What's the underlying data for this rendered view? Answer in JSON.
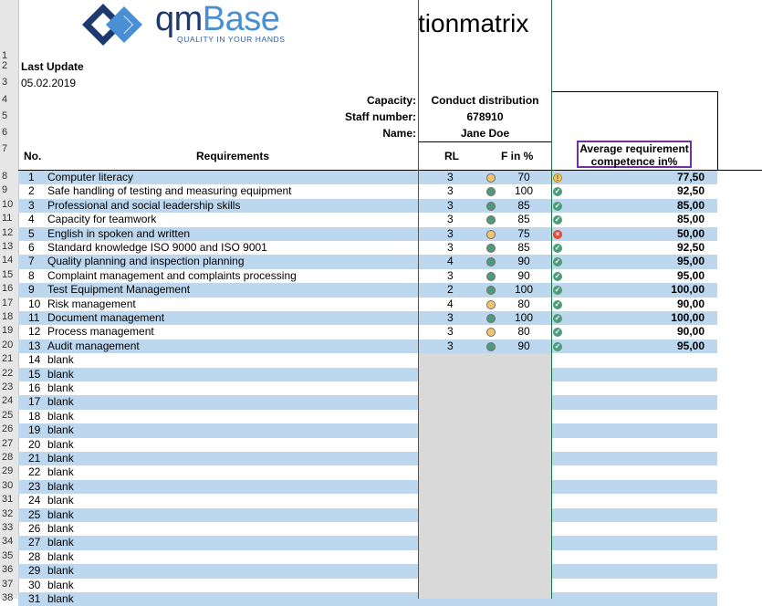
{
  "logo": {
    "word_a": "qm",
    "word_b": "Base",
    "tagline": "QUALITY IN YOUR HANDS"
  },
  "title": "tionmatrix",
  "last_update_label": "Last Update",
  "last_update_value": "05.02.2019",
  "info": {
    "capacity_label": "Capacity:",
    "capacity_value": "Conduct distribution",
    "staff_label": "Staff number:",
    "staff_value": "678910",
    "name_label": "Name:",
    "name_value": "Jane Doe"
  },
  "headers": {
    "no": "No.",
    "requirements": "Requirements",
    "rl": "RL",
    "f": "F in %",
    "avg": "Average requirement competence in%"
  },
  "status_colors": {
    "green": "#4e9a7a",
    "yellow": "#f2c46d",
    "red": "#e04b3c",
    "band": "#bdd7ee"
  },
  "row_numbers": [
    "1",
    "2",
    "3",
    "4",
    "5",
    "6",
    "7",
    "8",
    "9",
    "10",
    "11",
    "12",
    "13",
    "14",
    "15",
    "16",
    "17",
    "18",
    "19",
    "20",
    "21",
    "22",
    "23",
    "24",
    "25",
    "26",
    "27",
    "28",
    "29",
    "30",
    "31",
    "32",
    "33",
    "34",
    "35",
    "36",
    "37",
    "38"
  ],
  "requirements": [
    {
      "no": "1",
      "name": "Computer literacy",
      "rl": "3",
      "f": "70",
      "dot": "yellow",
      "icon": "warn",
      "avg": "77,50"
    },
    {
      "no": "2",
      "name": "Safe handling of testing and measuring equipment",
      "rl": "3",
      "f": "100",
      "dot": "green",
      "icon": "ok",
      "avg": "92,50"
    },
    {
      "no": "3",
      "name": "Professional and social leadership skills",
      "rl": "3",
      "f": "85",
      "dot": "green",
      "icon": "ok",
      "avg": "85,00"
    },
    {
      "no": "4",
      "name": "Capacity for teamwork",
      "rl": "3",
      "f": "85",
      "dot": "green",
      "icon": "ok",
      "avg": "85,00"
    },
    {
      "no": "5",
      "name": "English in spoken and written",
      "rl": "3",
      "f": "75",
      "dot": "yellow",
      "icon": "bad",
      "avg": "50,00"
    },
    {
      "no": "6",
      "name": "Standard knowledge ISO 9000 and ISO 9001",
      "rl": "3",
      "f": "85",
      "dot": "green",
      "icon": "ok",
      "avg": "92,50"
    },
    {
      "no": "7",
      "name": "Quality planning and inspection planning",
      "rl": "4",
      "f": "90",
      "dot": "green",
      "icon": "ok",
      "avg": "95,00"
    },
    {
      "no": "8",
      "name": "Complaint management and complaints processing",
      "rl": "3",
      "f": "90",
      "dot": "green",
      "icon": "ok",
      "avg": "95,00"
    },
    {
      "no": "9",
      "name": "Test Equipment Management",
      "rl": "2",
      "f": "100",
      "dot": "green",
      "icon": "ok",
      "avg": "100,00"
    },
    {
      "no": "10",
      "name": "Risk management",
      "rl": "4",
      "f": "80",
      "dot": "yellow",
      "icon": "ok",
      "avg": "90,00"
    },
    {
      "no": "11",
      "name": "Document management",
      "rl": "3",
      "f": "100",
      "dot": "green",
      "icon": "ok",
      "avg": "100,00"
    },
    {
      "no": "12",
      "name": "Process management",
      "rl": "3",
      "f": "80",
      "dot": "yellow",
      "icon": "ok",
      "avg": "90,00"
    },
    {
      "no": "13",
      "name": "Audit management",
      "rl": "3",
      "f": "90",
      "dot": "green",
      "icon": "ok",
      "avg": "95,00"
    }
  ],
  "blanks": [
    {
      "no": "14",
      "name": "blank"
    },
    {
      "no": "15",
      "name": "blank"
    },
    {
      "no": "16",
      "name": "blank"
    },
    {
      "no": "17",
      "name": "blank"
    },
    {
      "no": "18",
      "name": "blank"
    },
    {
      "no": "19",
      "name": "blank"
    },
    {
      "no": "20",
      "name": "blank"
    },
    {
      "no": "21",
      "name": "blank"
    },
    {
      "no": "22",
      "name": "blank"
    },
    {
      "no": "23",
      "name": "blank"
    },
    {
      "no": "24",
      "name": "blank"
    },
    {
      "no": "25",
      "name": "blank"
    },
    {
      "no": "26",
      "name": "blank"
    },
    {
      "no": "27",
      "name": "blank"
    },
    {
      "no": "28",
      "name": "blank"
    },
    {
      "no": "29",
      "name": "blank"
    },
    {
      "no": "30",
      "name": "blank"
    },
    {
      "no": "31",
      "name": "blank"
    }
  ]
}
